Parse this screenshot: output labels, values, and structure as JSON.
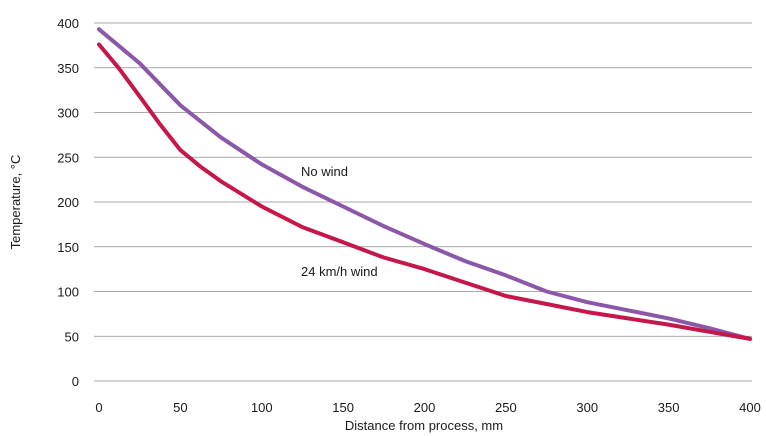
{
  "chart_data": {
    "type": "line",
    "xlabel": "Distance from process, mm",
    "ylabel": "Temperature, °C",
    "xlim": [
      0,
      400
    ],
    "ylim": [
      0,
      400
    ],
    "xticks": [
      "0",
      "50",
      "100",
      "150",
      "200",
      "250",
      "300",
      "350",
      "400"
    ],
    "yticks": [
      "0",
      "50",
      "100",
      "150",
      "200",
      "250",
      "300",
      "350",
      "400"
    ],
    "grid": "horizontal",
    "series": [
      {
        "name": "No wind",
        "color": "#8B57A8",
        "x": [
          0,
          25,
          50,
          75,
          100,
          125,
          150,
          175,
          200,
          225,
          250,
          275,
          300,
          325,
          350,
          375,
          400
        ],
        "y": [
          393,
          355,
          308,
          272,
          242,
          217,
          195,
          173,
          153,
          134,
          118,
          100,
          88,
          79,
          70,
          59,
          47
        ]
      },
      {
        "name": "24 km/h wind",
        "color": "#C5174A",
        "x": [
          0,
          12,
          25,
          37,
          50,
          62,
          75,
          100,
          125,
          150,
          175,
          200,
          225,
          250,
          275,
          300,
          325,
          350,
          375,
          400
        ],
        "y": [
          376,
          350,
          318,
          288,
          258,
          240,
          223,
          195,
          172,
          155,
          138,
          125,
          110,
          95,
          86,
          77,
          70,
          63,
          55,
          47
        ]
      }
    ]
  }
}
